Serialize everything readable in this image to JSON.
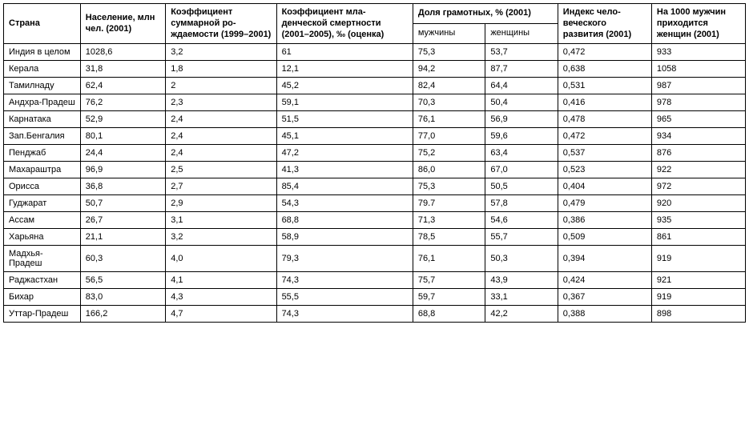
{
  "table": {
    "type": "table",
    "background_color": "#ffffff",
    "border_color": "#000000",
    "font_size": 11,
    "header": {
      "col_country": "Страна",
      "col_population": "Население, млн чел. (2001)",
      "col_fertility": "Коэффициент суммарной ро­ждаемости (1999–2001)",
      "col_infant_mortality": "Коэффициент мла­денческой смертно­сти (2001–2005), ‰ (оценка)",
      "col_literacy_group": "Доля грамотных,  % (2001)",
      "col_literacy_men": "мужчины",
      "col_literacy_women": "женщины",
      "col_hdi": "Индекс чело­веческого развития (2001)",
      "col_sex_ratio": "На 1000 мужчин приходится женщин (2001)"
    },
    "rows": [
      {
        "country": "Индия в целом",
        "population": "1028,6",
        "fertility": "3,2",
        "infant_mortality": "61",
        "lit_men": "75,3",
        "lit_women": "53,7",
        "hdi": "0,472",
        "sex_ratio": "933"
      },
      {
        "country": "Керала",
        "population": "31,8",
        "fertility": "1,8",
        "infant_mortality": "12,1",
        "lit_men": "94,2",
        "lit_women": "87,7",
        "hdi": "0,638",
        "sex_ratio": "1058"
      },
      {
        "country": "Тамилнаду",
        "population": "62,4",
        "fertility": "2",
        "infant_mortality": "45,2",
        "lit_men": "82,4",
        "lit_women": "64,4",
        "hdi": "0,531",
        "sex_ratio": "987"
      },
      {
        "country": "Андхра-Прадеш",
        "population": "76,2",
        "fertility": "2,3",
        "infant_mortality": "59,1",
        "lit_men": "70,3",
        "lit_women": "50,4",
        "hdi": "0,416",
        "sex_ratio": "978"
      },
      {
        "country": "Карнатака",
        "population": "52,9",
        "fertility": "2,4",
        "infant_mortality": "51,5",
        "lit_men": "76,1",
        "lit_women": "56,9",
        "hdi": "0,478",
        "sex_ratio": "965"
      },
      {
        "country": "Зап.Бенгалия",
        "population": "80,1",
        "fertility": "2,4",
        "infant_mortality": "45,1",
        "lit_men": "77,0",
        "lit_women": "59,6",
        "hdi": "0,472",
        "sex_ratio": "934"
      },
      {
        "country": "Пенджаб",
        "population": "24,4",
        "fertility": "2,4",
        "infant_mortality": "47,2",
        "lit_men": "75,2",
        "lit_women": "63,4",
        "hdi": "0,537",
        "sex_ratio": "876"
      },
      {
        "country": "Махараштра",
        "population": "96,9",
        "fertility": "2,5",
        "infant_mortality": "41,3",
        "lit_men": "86,0",
        "lit_women": "67,0",
        "hdi": "0,523",
        "sex_ratio": "922"
      },
      {
        "country": "Орисса",
        "population": "36,8",
        "fertility": "2,7",
        "infant_mortality": "85,4",
        "lit_men": "75,3",
        "lit_women": "50,5",
        "hdi": "0,404",
        "sex_ratio": "972"
      },
      {
        "country": "Гуджарат",
        "population": "50,7",
        "fertility": "2,9",
        "infant_mortality": "54,3",
        "lit_men": "79.7",
        "lit_women": "57,8",
        "hdi": "0,479",
        "sex_ratio": "920"
      },
      {
        "country": "Ассам",
        "population": "26,7",
        "fertility": "3,1",
        "infant_mortality": "68,8",
        "lit_men": "71,3",
        "lit_women": "54,6",
        "hdi": "0,386",
        "sex_ratio": "935"
      },
      {
        "country": "Харьяна",
        "population": "21,1",
        "fertility": "3,2",
        "infant_mortality": "58,9",
        "lit_men": "78,5",
        "lit_women": "55,7",
        "hdi": "0,509",
        "sex_ratio": "861"
      },
      {
        "country": "Мадхья-Прадеш",
        "population": "60,3",
        "fertility": "4,0",
        "infant_mortality": "79,3",
        "lit_men": "76,1",
        "lit_women": "50,3",
        "hdi": "0,394",
        "sex_ratio": "919"
      },
      {
        "country": "Раджастхан",
        "population": "56,5",
        "fertility": "4,1",
        "infant_mortality": "74,3",
        "lit_men": "75,7",
        "lit_women": "43,9",
        "hdi": "0,424",
        "sex_ratio": "921"
      },
      {
        "country": "Бихар",
        "population": "83,0",
        "fertility": "4,3",
        "infant_mortality": "55,5",
        "lit_men": "59,7",
        "lit_women": "33,1",
        "hdi": "0,367",
        "sex_ratio": "919"
      },
      {
        "country": "Уттар-Прадеш",
        "population": "166,2",
        "fertility": "4,7",
        "infant_mortality": "74,3",
        "lit_men": "68,8",
        "lit_women": "42,2",
        "hdi": "0,388",
        "sex_ratio": "898"
      }
    ]
  }
}
